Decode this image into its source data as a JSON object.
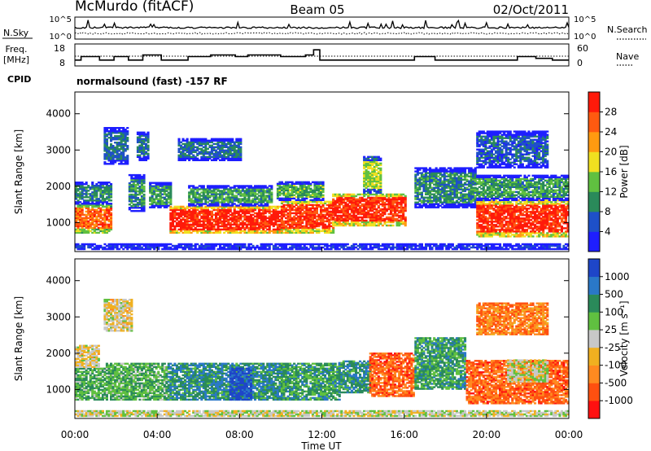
{
  "header": {
    "site": "McMurdo (fitACF)",
    "beam": "Beam 05",
    "date": "02/Oct/2011"
  },
  "top_panels": {
    "nsky_label": "N.Sky",
    "nsky_ticks": [
      "10^5",
      "10^0"
    ],
    "nsearch_label": "N.Search",
    "nsearch_ticks": [
      "10^5",
      "10^0"
    ],
    "freq_label": "Freq.",
    "freq_unit": "[MHz]",
    "freq_ticks": [
      "18",
      "8"
    ],
    "nave_label": "Nave",
    "nave_ticks": [
      "60",
      "0"
    ],
    "cpid_label": "CPID",
    "cpid_text": "normalsound (fast) -157 RF",
    "freq_steps": [
      {
        "t": 0.0,
        "v": 10.5
      },
      {
        "t": 0.3,
        "v": 12.5
      },
      {
        "t": 1.2,
        "v": 10.5
      },
      {
        "t": 1.9,
        "v": 12.5
      },
      {
        "t": 2.6,
        "v": 10.5
      },
      {
        "t": 3.3,
        "v": 13.5
      },
      {
        "t": 4.2,
        "v": 10.5
      },
      {
        "t": 5.5,
        "v": 12.5
      },
      {
        "t": 6.6,
        "v": 13.5
      },
      {
        "t": 7.8,
        "v": 12.5
      },
      {
        "t": 8.4,
        "v": 13.5
      },
      {
        "t": 10.0,
        "v": 12.5
      },
      {
        "t": 10.7,
        "v": 12.5
      },
      {
        "t": 11.2,
        "v": 13.5
      },
      {
        "t": 11.6,
        "v": 16.5
      },
      {
        "t": 11.9,
        "v": 10.5
      },
      {
        "t": 13.5,
        "v": 10.5
      },
      {
        "t": 16.5,
        "v": 12.5
      },
      {
        "t": 17.5,
        "v": 10.5
      },
      {
        "t": 19.5,
        "v": 10.5
      },
      {
        "t": 21.5,
        "v": 12.5
      },
      {
        "t": 22.4,
        "v": 11.5
      },
      {
        "t": 23.2,
        "v": 10.5
      },
      {
        "t": 24.0,
        "v": 10.5
      }
    ]
  },
  "chart_data": [
    {
      "type": "heatmap",
      "title": "",
      "xlabel": "",
      "ylabel": "Slant Range [km]",
      "xlim": [
        0,
        24
      ],
      "ylim": [
        200,
        4600
      ],
      "yticks": [
        "1000",
        "2000",
        "3000",
        "4000"
      ],
      "colorbar": {
        "label": "Power [dB]",
        "ticks": [
          "4",
          "8",
          "12",
          "16",
          "20",
          "24",
          "28"
        ],
        "colors": [
          "#1e1eff",
          "#1e50c8",
          "#2a8a5a",
          "#60c040",
          "#f0e020",
          "#ff9a10",
          "#ff5a10",
          "#ff1a0a"
        ]
      },
      "events": [
        {
          "t0": 0.0,
          "t1": 1.8,
          "r0": 700,
          "r1": 1500,
          "v": 0.8
        },
        {
          "t0": 0.0,
          "t1": 1.8,
          "r0": 1500,
          "r1": 2100,
          "v": 0.3
        },
        {
          "t0": 1.4,
          "t1": 2.6,
          "r0": 2600,
          "r1": 3600,
          "v": 0.25
        },
        {
          "t0": 2.6,
          "t1": 3.4,
          "r0": 1300,
          "r1": 2300,
          "v": 0.3
        },
        {
          "t0": 3.0,
          "t1": 3.6,
          "r0": 2700,
          "r1": 3500,
          "v": 0.25
        },
        {
          "t0": 3.6,
          "t1": 4.6,
          "r0": 1400,
          "r1": 2100,
          "v": 0.35
        },
        {
          "t0": 4.6,
          "t1": 10.0,
          "r0": 700,
          "r1": 1450,
          "v": 0.95
        },
        {
          "t0": 5.5,
          "t1": 9.5,
          "r0": 1450,
          "r1": 2000,
          "v": 0.35
        },
        {
          "t0": 5.0,
          "t1": 8.0,
          "r0": 2700,
          "r1": 3300,
          "v": 0.25
        },
        {
          "t0": 10.0,
          "t1": 12.5,
          "r0": 700,
          "r1": 1600,
          "v": 0.9
        },
        {
          "t0": 9.8,
          "t1": 12.0,
          "r0": 1600,
          "r1": 2100,
          "v": 0.4
        },
        {
          "t0": 12.5,
          "t1": 16.0,
          "r0": 900,
          "r1": 1800,
          "v": 0.9
        },
        {
          "t0": 14.0,
          "t1": 14.8,
          "r0": 1800,
          "r1": 2800,
          "v": 0.5
        },
        {
          "t0": 16.5,
          "t1": 19.5,
          "r0": 1400,
          "r1": 2500,
          "v": 0.3
        },
        {
          "t0": 19.5,
          "t1": 24.0,
          "r0": 600,
          "r1": 1600,
          "v": 0.92
        },
        {
          "t0": 19.5,
          "t1": 24.0,
          "r0": 1600,
          "r1": 2300,
          "v": 0.35
        },
        {
          "t0": 19.5,
          "t1": 23.0,
          "r0": 2500,
          "r1": 3500,
          "v": 0.2
        },
        {
          "t0": 0.0,
          "t1": 24.0,
          "r0": 250,
          "r1": 400,
          "v": 0.1
        }
      ]
    },
    {
      "type": "heatmap",
      "title": "",
      "xlabel": "Time UT",
      "ylabel": "Slant Range [km]",
      "xlim": [
        0,
        24
      ],
      "ylim": [
        200,
        4600
      ],
      "xticks": [
        "00:00",
        "04:00",
        "08:00",
        "12:00",
        "16:00",
        "20:00",
        "00:00"
      ],
      "yticks": [
        "1000",
        "2000",
        "3000",
        "4000"
      ],
      "colorbar": {
        "label": "Velocity [m s⁻¹]",
        "ticks": [
          "1000",
          "500",
          "100",
          "25",
          "-25",
          "-100",
          "-500",
          "-1000"
        ],
        "colors": [
          "#1e46c8",
          "#2a78c8",
          "#2a8a5a",
          "#60c040",
          "#c8c8c8",
          "#f0b020",
          "#ff8a20",
          "#ff5010",
          "#ff1010"
        ]
      },
      "events": [
        {
          "t0": 0.0,
          "t1": 1.5,
          "r0": 700,
          "r1": 1600,
          "v": 0.35
        },
        {
          "t0": 0.0,
          "t1": 1.2,
          "r0": 1600,
          "r1": 2200,
          "v": 0.55
        },
        {
          "t0": 1.5,
          "t1": 4.5,
          "r0": 700,
          "r1": 1700,
          "v": 0.35
        },
        {
          "t0": 1.4,
          "t1": 2.8,
          "r0": 2600,
          "r1": 3500,
          "v": 0.55
        },
        {
          "t0": 4.5,
          "t1": 10.0,
          "r0": 700,
          "r1": 1700,
          "v": 0.25
        },
        {
          "t0": 7.5,
          "t1": 8.5,
          "r0": 700,
          "r1": 1600,
          "v": 0.05
        },
        {
          "t0": 10.0,
          "t1": 12.8,
          "r0": 700,
          "r1": 1700,
          "v": 0.3
        },
        {
          "t0": 12.8,
          "t1": 14.3,
          "r0": 900,
          "r1": 1800,
          "v": 0.25
        },
        {
          "t0": 14.3,
          "t1": 16.5,
          "r0": 800,
          "r1": 2000,
          "v": 0.8
        },
        {
          "t0": 16.5,
          "t1": 19.0,
          "r0": 1000,
          "r1": 2400,
          "v": 0.3
        },
        {
          "t0": 19.0,
          "t1": 24.0,
          "r0": 600,
          "r1": 1800,
          "v": 0.8
        },
        {
          "t0": 21.0,
          "t1": 23.0,
          "r0": 1200,
          "r1": 1800,
          "v": 0.5
        },
        {
          "t0": 19.5,
          "t1": 23.0,
          "r0": 2500,
          "r1": 3400,
          "v": 0.75
        },
        {
          "t0": 0.0,
          "t1": 24.0,
          "r0": 250,
          "r1": 400,
          "v": 0.5
        }
      ]
    }
  ]
}
